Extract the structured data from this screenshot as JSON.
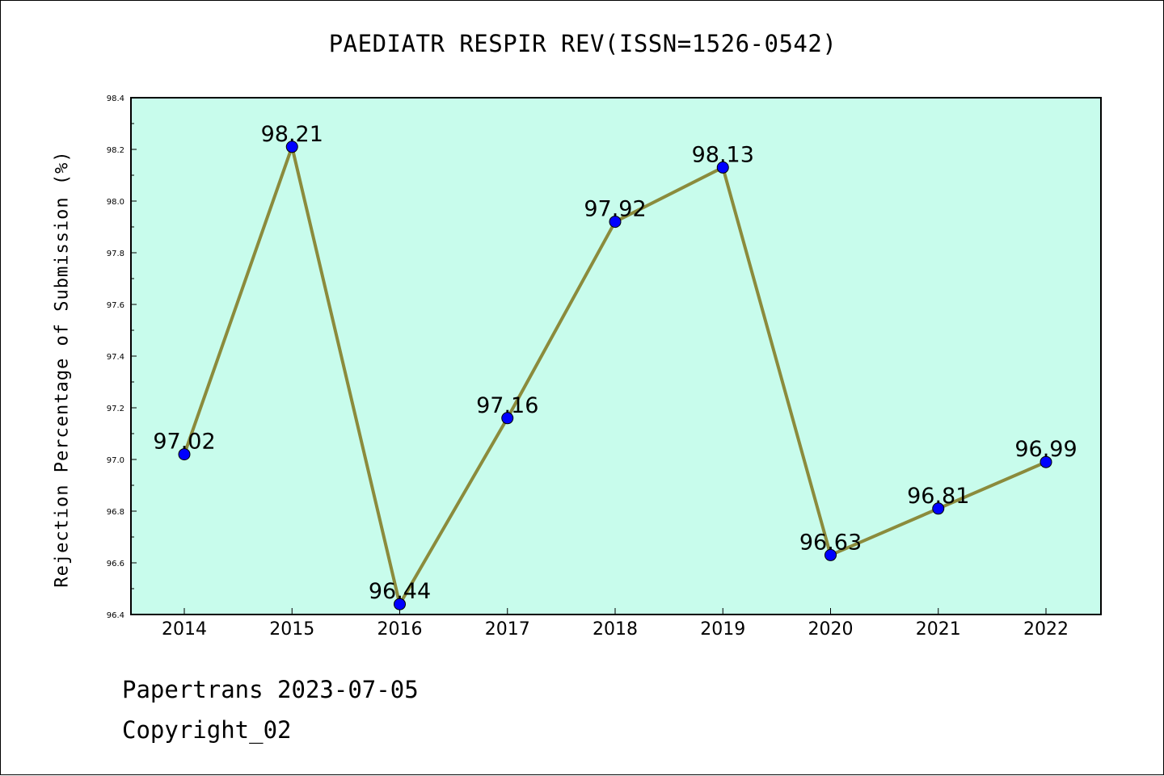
{
  "title": "PAEDIATR RESPIR REV(ISSN=1526-0542)",
  "footer": {
    "date_line": "Papertrans 2023-07-05",
    "copyright": "Copyright_02"
  },
  "chart_data": {
    "type": "line",
    "title": "PAEDIATR RESPIR REV(ISSN=1526-0542)",
    "xlabel": "",
    "ylabel": "Rejection Percentage of Submission (%)",
    "categories": [
      "2014",
      "2015",
      "2016",
      "2017",
      "2018",
      "2019",
      "2020",
      "2021",
      "2022"
    ],
    "series": [
      {
        "values": [
          97.02,
          98.21,
          96.44,
          97.16,
          97.92,
          98.13,
          96.63,
          96.81,
          96.99
        ]
      }
    ],
    "data_labels": [
      "97.02",
      "98.21",
      "96.44",
      "97.16",
      "97.92",
      "98.13",
      "96.63",
      "96.81",
      "96.99"
    ],
    "ylim": [
      96.4,
      98.4
    ],
    "yticks": [
      "96.4",
      "96.6",
      "96.8",
      "97.0",
      "97.2",
      "97.4",
      "97.6",
      "97.8",
      "98.0",
      "98.2",
      "98.4"
    ],
    "grid": false,
    "colors": {
      "plot_background": "#c8fcec",
      "line": "#8b8b3c",
      "marker": "#0000ff"
    }
  }
}
